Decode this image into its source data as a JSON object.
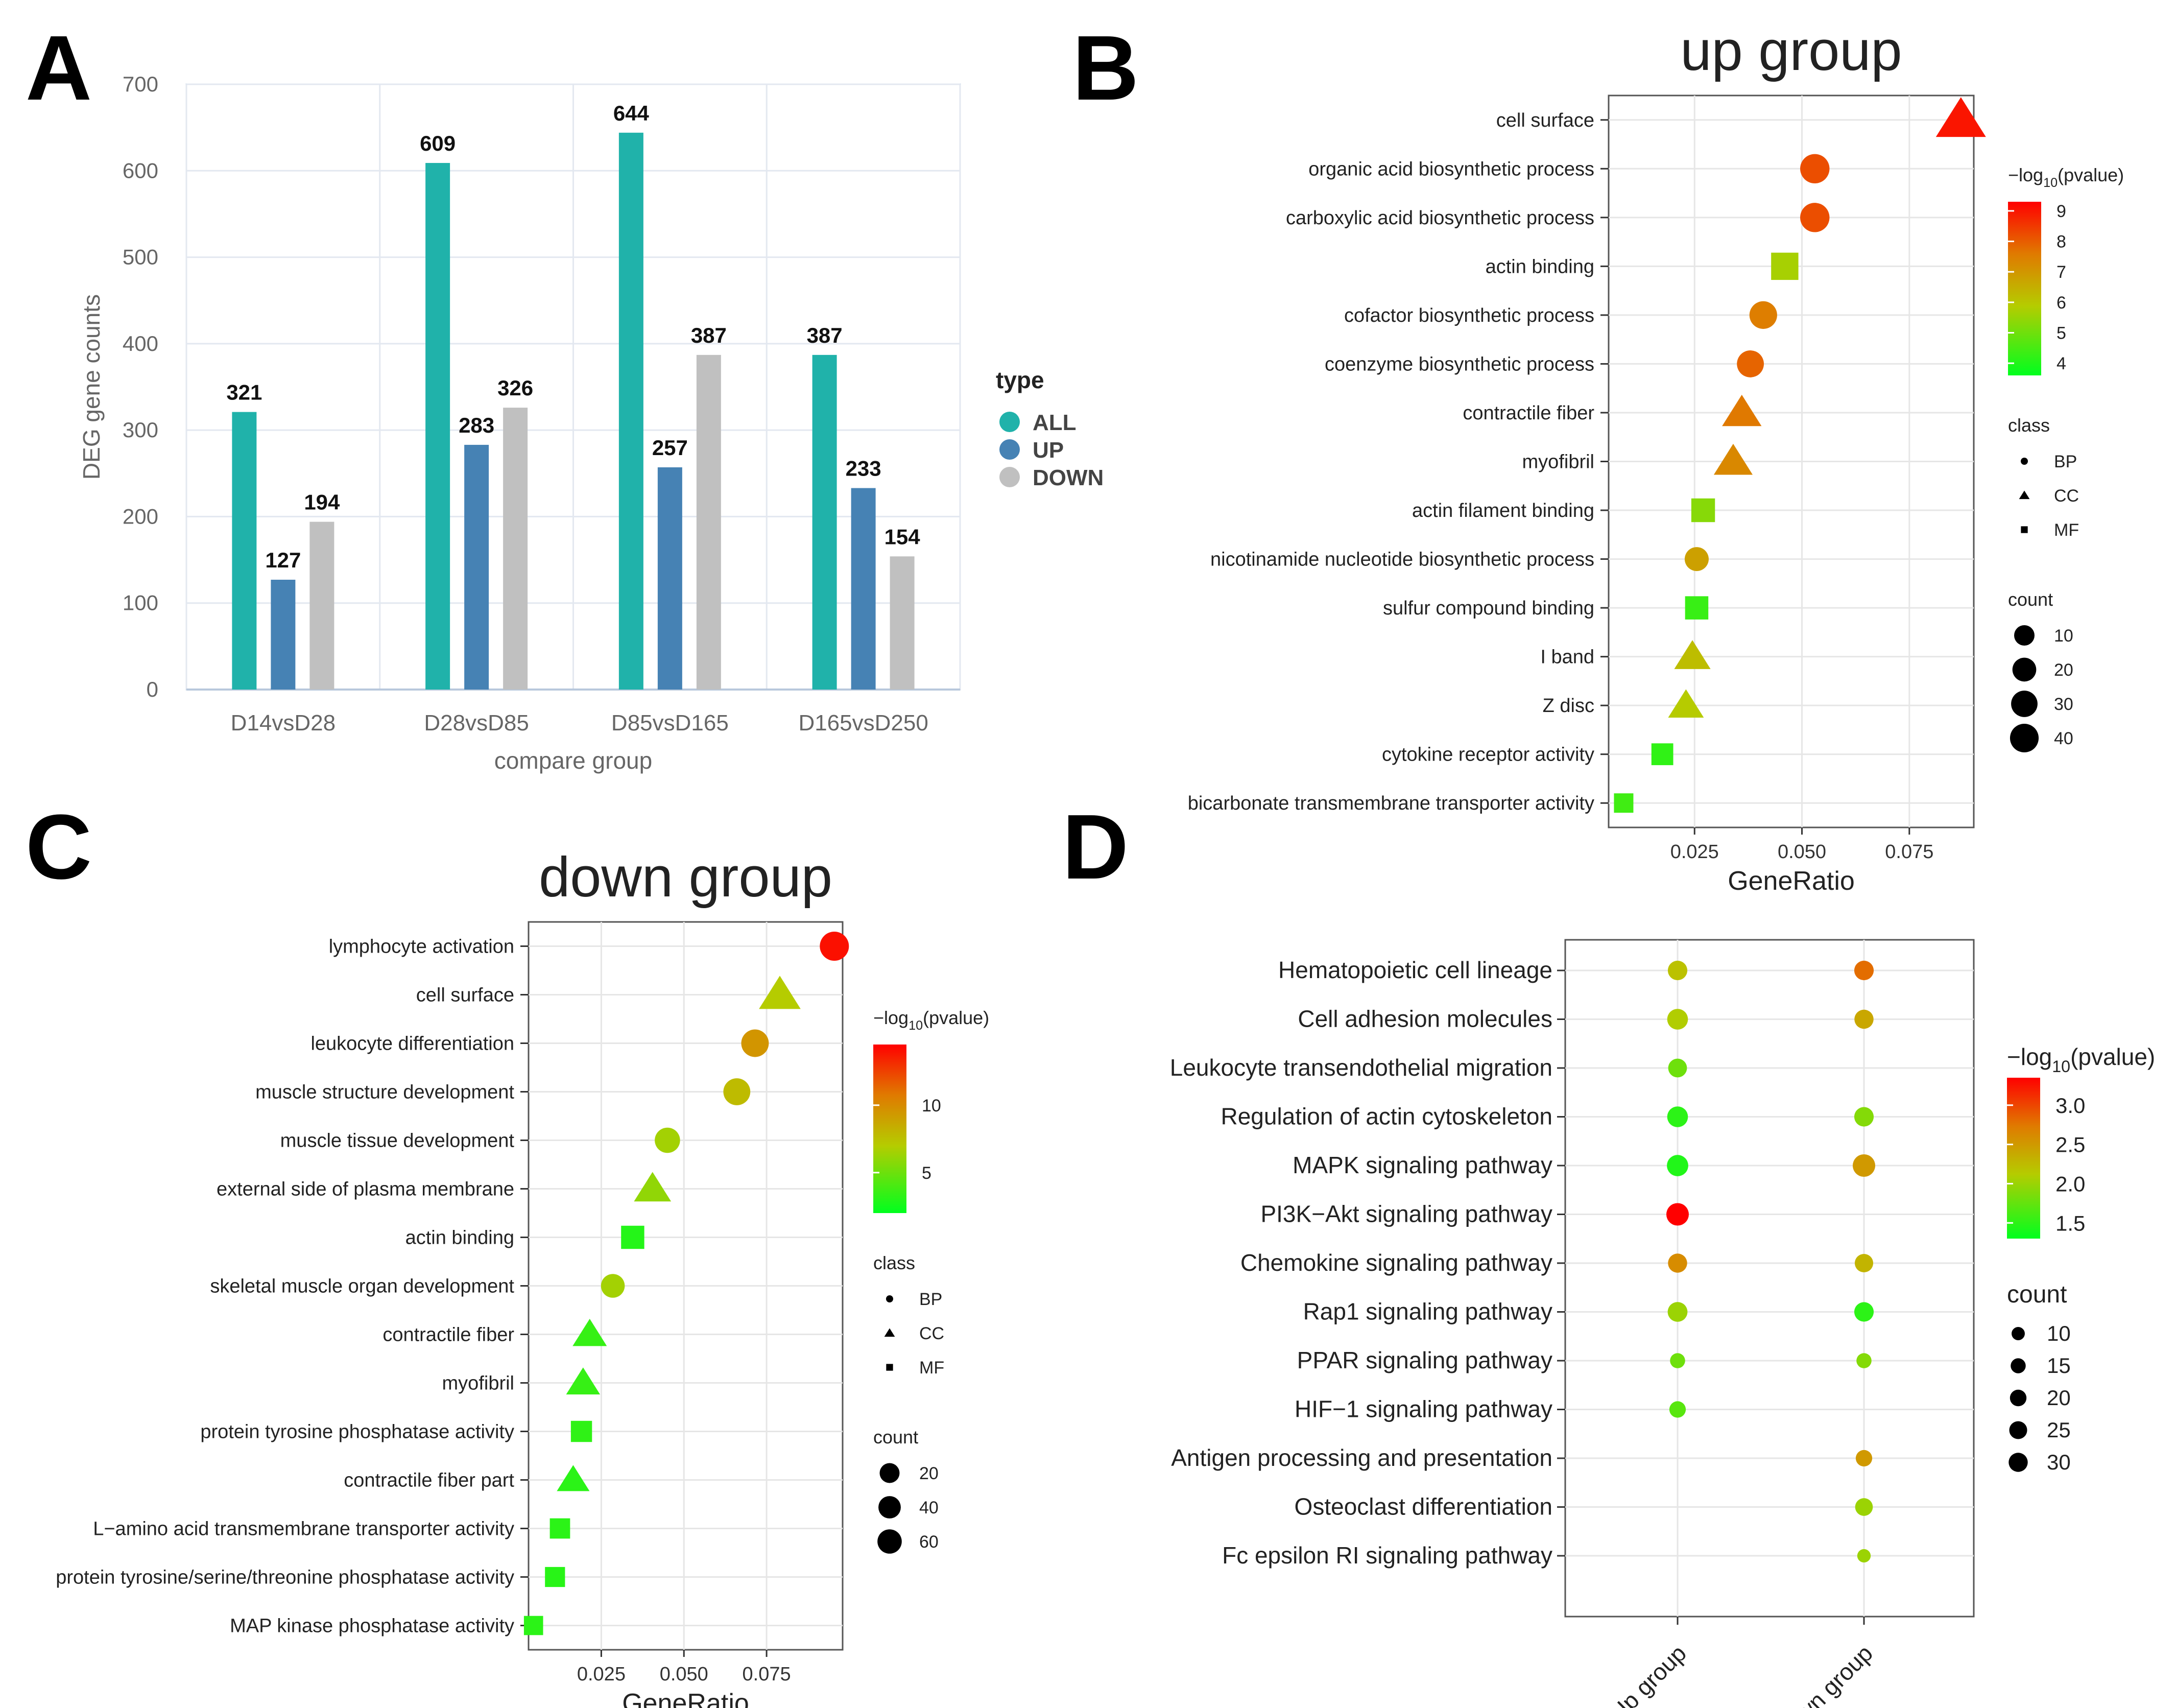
{
  "chart_data": [
    {
      "panel": "A",
      "type": "bar",
      "title": "",
      "xlabel": "compare group",
      "ylabel": "DEG gene counts",
      "categories": [
        "D14vsD28",
        "D28vsD85",
        "D85vsD165",
        "D165vsD250"
      ],
      "series": [
        {
          "name": "ALL",
          "color": "#20b2aa",
          "values": [
            321,
            609,
            644,
            387
          ]
        },
        {
          "name": "UP",
          "color": "#4682b4",
          "values": [
            127,
            283,
            257,
            233
          ]
        },
        {
          "name": "DOWN",
          "color": "#c0c0c0",
          "values": [
            194,
            326,
            387,
            154
          ]
        }
      ],
      "ylim": [
        0,
        700
      ],
      "yticks": [
        0,
        100,
        200,
        300,
        400,
        500,
        600,
        700
      ],
      "legend_title": "type",
      "legend_position": "right",
      "grid": true
    },
    {
      "panel": "B",
      "type": "scatter",
      "title": "up group",
      "xlabel": "GeneRatio",
      "ylabel": "",
      "xlim": [
        0.005,
        0.09
      ],
      "xticks": [
        0.025,
        0.05,
        0.075
      ],
      "xtick_labels": [
        "0.025",
        "0.050",
        "0.075"
      ],
      "points": [
        {
          "term": "cell surface",
          "x": 0.087,
          "neglogp": 9.0,
          "count": 40,
          "class": "CC"
        },
        {
          "term": "organic acid biosynthetic process",
          "x": 0.053,
          "neglogp": 8.2,
          "count": 24,
          "class": "BP"
        },
        {
          "term": "carboxylic acid biosynthetic process",
          "x": 0.053,
          "neglogp": 8.2,
          "count": 24,
          "class": "BP"
        },
        {
          "term": "actin binding",
          "x": 0.046,
          "neglogp": 5.7,
          "count": 22,
          "class": "MF"
        },
        {
          "term": "cofactor biosynthetic process",
          "x": 0.041,
          "neglogp": 7.5,
          "count": 19,
          "class": "BP"
        },
        {
          "term": "coenzyme biosynthetic process",
          "x": 0.038,
          "neglogp": 7.9,
          "count": 17,
          "class": "BP"
        },
        {
          "term": "contractile fiber",
          "x": 0.036,
          "neglogp": 7.6,
          "count": 16,
          "class": "CC"
        },
        {
          "term": "myofibril",
          "x": 0.034,
          "neglogp": 7.3,
          "count": 15,
          "class": "CC"
        },
        {
          "term": "actin filament binding",
          "x": 0.027,
          "neglogp": 5.3,
          "count": 12,
          "class": "MF"
        },
        {
          "term": "nicotinamide nucleotide biosynthetic process",
          "x": 0.0255,
          "neglogp": 6.8,
          "count": 10,
          "class": "BP"
        },
        {
          "term": "sulfur compound binding",
          "x": 0.0255,
          "neglogp": 4.3,
          "count": 11,
          "class": "MF"
        },
        {
          "term": "I band",
          "x": 0.0245,
          "neglogp": 6.2,
          "count": 11,
          "class": "CC"
        },
        {
          "term": "Z disc",
          "x": 0.023,
          "neglogp": 5.9,
          "count": 10,
          "class": "CC"
        },
        {
          "term": "cytokine receptor activity",
          "x": 0.0175,
          "neglogp": 4.2,
          "count": 8,
          "class": "MF"
        },
        {
          "term": "bicarbonate transmembrane transporter activity",
          "x": 0.0085,
          "neglogp": 4.4,
          "count": 4,
          "class": "MF"
        }
      ],
      "color_legend": {
        "title_prefix": "−log",
        "title_sub": "10",
        "title_suffix": "(pvalue)",
        "range": [
          3.6,
          9.3
        ],
        "ticks": [
          4,
          5,
          6,
          7,
          8,
          9
        ]
      },
      "class_legend": {
        "title": "class",
        "items": [
          "BP",
          "CC",
          "MF"
        ]
      },
      "count_legend": {
        "title": "count",
        "items": [
          10,
          20,
          30,
          40
        ]
      }
    },
    {
      "panel": "C",
      "type": "scatter",
      "title": "down group",
      "xlabel": "GeneRatio",
      "ylabel": "",
      "xlim": [
        0.003,
        0.098
      ],
      "xticks": [
        0.025,
        0.05,
        0.075
      ],
      "xtick_labels": [
        "0.025",
        "0.050",
        "0.075"
      ],
      "points": [
        {
          "term": "lymphocyte activation",
          "x": 0.0955,
          "neglogp": 14.0,
          "count": 65,
          "class": "BP"
        },
        {
          "term": "cell surface",
          "x": 0.079,
          "neglogp": 7.0,
          "count": 55,
          "class": "CC"
        },
        {
          "term": "leukocyte differentiation",
          "x": 0.0715,
          "neglogp": 9.5,
          "count": 50,
          "class": "BP"
        },
        {
          "term": "muscle structure development",
          "x": 0.066,
          "neglogp": 7.8,
          "count": 45,
          "class": "BP"
        },
        {
          "term": "muscle tissue development",
          "x": 0.045,
          "neglogp": 6.5,
          "count": 32,
          "class": "BP"
        },
        {
          "term": "external side of plasma membrane",
          "x": 0.0405,
          "neglogp": 6.0,
          "count": 30,
          "class": "CC"
        },
        {
          "term": "actin binding",
          "x": 0.0345,
          "neglogp": 3.0,
          "count": 26,
          "class": "MF"
        },
        {
          "term": "skeletal muscle organ development",
          "x": 0.0285,
          "neglogp": 6.5,
          "count": 22,
          "class": "BP"
        },
        {
          "term": "contractile fiber",
          "x": 0.0215,
          "neglogp": 3.5,
          "count": 18,
          "class": "CC"
        },
        {
          "term": "myofibril",
          "x": 0.0195,
          "neglogp": 3.5,
          "count": 17,
          "class": "CC"
        },
        {
          "term": "protein tyrosine phosphatase activity",
          "x": 0.019,
          "neglogp": 3.3,
          "count": 14,
          "class": "MF"
        },
        {
          "term": "contractile fiber part",
          "x": 0.0165,
          "neglogp": 3.2,
          "count": 13,
          "class": "CC"
        },
        {
          "term": "L−amino acid transmembrane transporter activity",
          "x": 0.0125,
          "neglogp": 3.2,
          "count": 10,
          "class": "MF"
        },
        {
          "term": "protein tyrosine/serine/threonine phosphatase activity",
          "x": 0.011,
          "neglogp": 3.1,
          "count": 9,
          "class": "MF"
        },
        {
          "term": "MAP kinase phosphatase activity",
          "x": 0.0045,
          "neglogp": 3.2,
          "count": 6,
          "class": "MF"
        }
      ],
      "color_legend": {
        "title_prefix": "−log",
        "title_sub": "10",
        "title_suffix": "(pvalue)",
        "range": [
          2.0,
          14.5
        ],
        "ticks": [
          5,
          10
        ]
      },
      "class_legend": {
        "title": "class",
        "items": [
          "BP",
          "CC",
          "MF"
        ]
      },
      "count_legend": {
        "title": "count",
        "items": [
          20,
          40,
          60
        ]
      }
    },
    {
      "panel": "D",
      "type": "scatter",
      "title": "",
      "xlabel": "",
      "ylabel": "",
      "x_categories": [
        "Up group",
        "Down group"
      ],
      "pathways": [
        "Hematopoietic cell lineage",
        "Cell adhesion molecules",
        "Leukocyte transendothelial migration",
        "Regulation of actin cytoskeleton",
        "MAPK signaling pathway",
        "PI3K−Akt signaling pathway",
        "Chemokine signaling pathway",
        "Rap1 signaling pathway",
        "PPAR signaling pathway",
        "HIF−1 signaling pathway",
        "Antigen processing and presentation",
        "Osteoclast differentiation",
        "Fc epsilon RI signaling pathway"
      ],
      "points": [
        {
          "pathway": "Hematopoietic cell lineage",
          "group": "Up group",
          "neglogp": 2.2,
          "count": 20
        },
        {
          "pathway": "Hematopoietic cell lineage",
          "group": "Down group",
          "neglogp": 2.8,
          "count": 20
        },
        {
          "pathway": "Cell adhesion molecules",
          "group": "Up group",
          "neglogp": 2.1,
          "count": 24
        },
        {
          "pathway": "Cell adhesion molecules",
          "group": "Down group",
          "neglogp": 2.4,
          "count": 19
        },
        {
          "pathway": "Leukocyte transendothelial migration",
          "group": "Up group",
          "neglogp": 1.8,
          "count": 18
        },
        {
          "pathway": "Regulation of actin cytoskeleton",
          "group": "Up group",
          "neglogp": 1.5,
          "count": 24
        },
        {
          "pathway": "Regulation of actin cytoskeleton",
          "group": "Down group",
          "neglogp": 1.9,
          "count": 20
        },
        {
          "pathway": "MAPK signaling pathway",
          "group": "Up group",
          "neglogp": 1.45,
          "count": 26
        },
        {
          "pathway": "MAPK signaling pathway",
          "group": "Down group",
          "neglogp": 2.5,
          "count": 30
        },
        {
          "pathway": "PI3K−Akt signaling pathway",
          "group": "Up group",
          "neglogp": 3.4,
          "count": 30
        },
        {
          "pathway": "Chemokine signaling pathway",
          "group": "Up group",
          "neglogp": 2.6,
          "count": 19
        },
        {
          "pathway": "Chemokine signaling pathway",
          "group": "Down group",
          "neglogp": 2.3,
          "count": 17
        },
        {
          "pathway": "Rap1 signaling pathway",
          "group": "Up group",
          "neglogp": 2.0,
          "count": 21
        },
        {
          "pathway": "Rap1 signaling pathway",
          "group": "Down group",
          "neglogp": 1.5,
          "count": 20
        },
        {
          "pathway": "PPAR signaling pathway",
          "group": "Up group",
          "neglogp": 1.8,
          "count": 9
        },
        {
          "pathway": "PPAR signaling pathway",
          "group": "Down group",
          "neglogp": 1.9,
          "count": 9
        },
        {
          "pathway": "HIF−1 signaling pathway",
          "group": "Up group",
          "neglogp": 1.7,
          "count": 12
        },
        {
          "pathway": "Antigen processing and presentation",
          "group": "Down group",
          "neglogp": 2.5,
          "count": 12
        },
        {
          "pathway": "Osteoclast differentiation",
          "group": "Down group",
          "neglogp": 2.0,
          "count": 15
        },
        {
          "pathway": "Fc epsilon RI signaling pathway",
          "group": "Down group",
          "neglogp": 2.0,
          "count": 6
        }
      ],
      "color_legend": {
        "title_prefix": "−log",
        "title_sub": "10",
        "title_suffix": "(pvalue)",
        "range": [
          1.3,
          3.35
        ],
        "ticks": [
          1.5,
          2.0,
          2.5,
          3.0
        ],
        "tick_labels": [
          "1.5",
          "2.0",
          "2.5",
          "3.0"
        ]
      },
      "count_legend": {
        "title": "count",
        "items": [
          10,
          15,
          20,
          25,
          30
        ]
      }
    }
  ],
  "panel_letters": [
    "A",
    "B",
    "C",
    "D"
  ]
}
